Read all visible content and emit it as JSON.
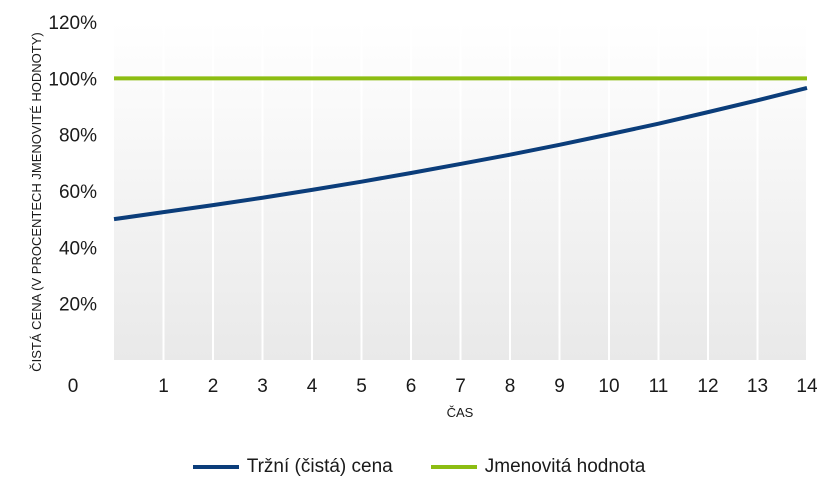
{
  "chart_data": {
    "type": "line",
    "xlabel": "ČAS",
    "ylabel": "ČISTÁ CENA (V PROCENTECH JMENOVITÉ HODNOTY)",
    "x": [
      0,
      1,
      2,
      3,
      4,
      5,
      6,
      7,
      8,
      9,
      10,
      11,
      12,
      13,
      14
    ],
    "x_tick_labels": [
      "0",
      "1",
      "2",
      "3",
      "4",
      "5",
      "6",
      "7",
      "8",
      "9",
      "10",
      "11",
      "12",
      "13",
      "14"
    ],
    "y_tick_labels": [
      "20%",
      "40%",
      "60%",
      "80%",
      "100%",
      "120%"
    ],
    "xlim": [
      0,
      14
    ],
    "ylim": [
      0,
      120
    ],
    "grid": "vertical",
    "legend_position": "bottom",
    "series": [
      {
        "name": "Tržní (čistá) cena",
        "color": "#0b3d7a",
        "values": [
          50.0,
          52.5,
          55.0,
          57.6,
          60.4,
          63.3,
          66.4,
          69.6,
          72.9,
          76.4,
          80.1,
          83.9,
          88.0,
          92.2,
          96.6
        ]
      },
      {
        "name": "Jmenovitá hodnota",
        "color": "#8cbd12",
        "values": [
          100,
          100,
          100,
          100,
          100,
          100,
          100,
          100,
          100,
          100,
          100,
          100,
          100,
          100,
          100
        ]
      }
    ]
  }
}
